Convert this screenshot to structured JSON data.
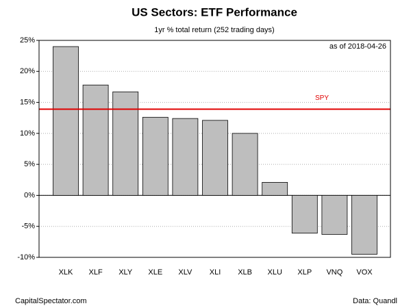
{
  "chart_data": {
    "type": "bar",
    "title": "US Sectors: ETF Performance",
    "subtitle": "1yr % total return (252 trading days)",
    "annotation": "as of  2018-04-26",
    "footer_left": "CapitalSpectator.com",
    "footer_right": "Data: Quandl",
    "categories": [
      "XLK",
      "XLF",
      "XLY",
      "XLE",
      "XLV",
      "XLI",
      "XLB",
      "XLU",
      "XLP",
      "VNQ",
      "VOX"
    ],
    "values": [
      24.0,
      17.8,
      16.7,
      12.6,
      12.4,
      12.1,
      10.0,
      2.1,
      -6.1,
      -6.3,
      -9.5
    ],
    "color": "#bebebe",
    "ylim": [
      -10,
      25
    ],
    "yticks": [
      {
        "value": -10,
        "label": "-10%"
      },
      {
        "value": -5,
        "label": "-5%"
      },
      {
        "value": 0,
        "label": "0%"
      },
      {
        "value": 5,
        "label": "5%"
      },
      {
        "value": 10,
        "label": "10%"
      },
      {
        "value": 15,
        "label": "15%"
      },
      {
        "value": 20,
        "label": "20%"
      },
      {
        "value": 25,
        "label": "25%"
      }
    ],
    "grid": true,
    "reference_line": {
      "label": "SPY",
      "value": 13.9,
      "color": "#e00000"
    }
  }
}
